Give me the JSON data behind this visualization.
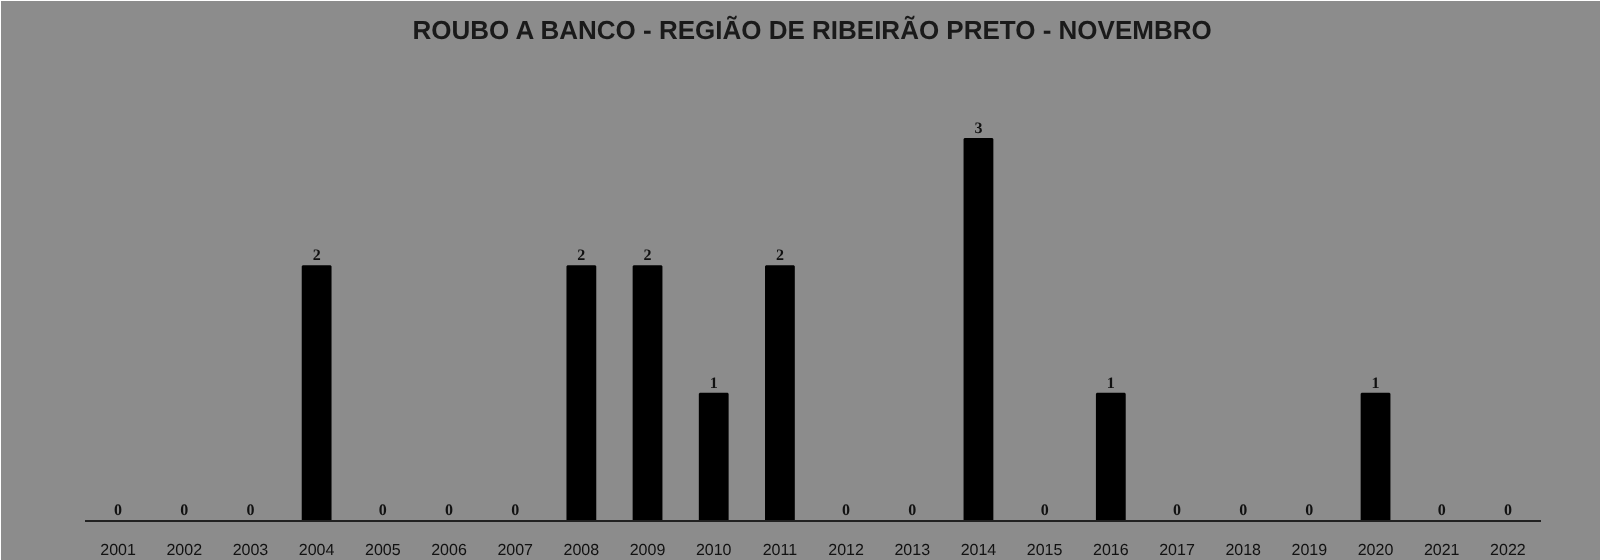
{
  "chart_data": {
    "type": "bar",
    "title": "ROUBO A BANCO - REGIÃO DE RIBEIRÃO PRETO - NOVEMBRO",
    "categories": [
      "2001",
      "2002",
      "2003",
      "2004",
      "2005",
      "2006",
      "2007",
      "2008",
      "2009",
      "2010",
      "2011",
      "2012",
      "2013",
      "2014",
      "2015",
      "2016",
      "2017",
      "2018",
      "2019",
      "2020",
      "2021",
      "2022"
    ],
    "values": [
      0,
      0,
      0,
      2,
      0,
      0,
      0,
      2,
      2,
      1,
      2,
      0,
      0,
      3,
      0,
      1,
      0,
      0,
      0,
      1,
      0,
      0
    ],
    "color": "#000000",
    "data_labels": true,
    "grid": false
  }
}
